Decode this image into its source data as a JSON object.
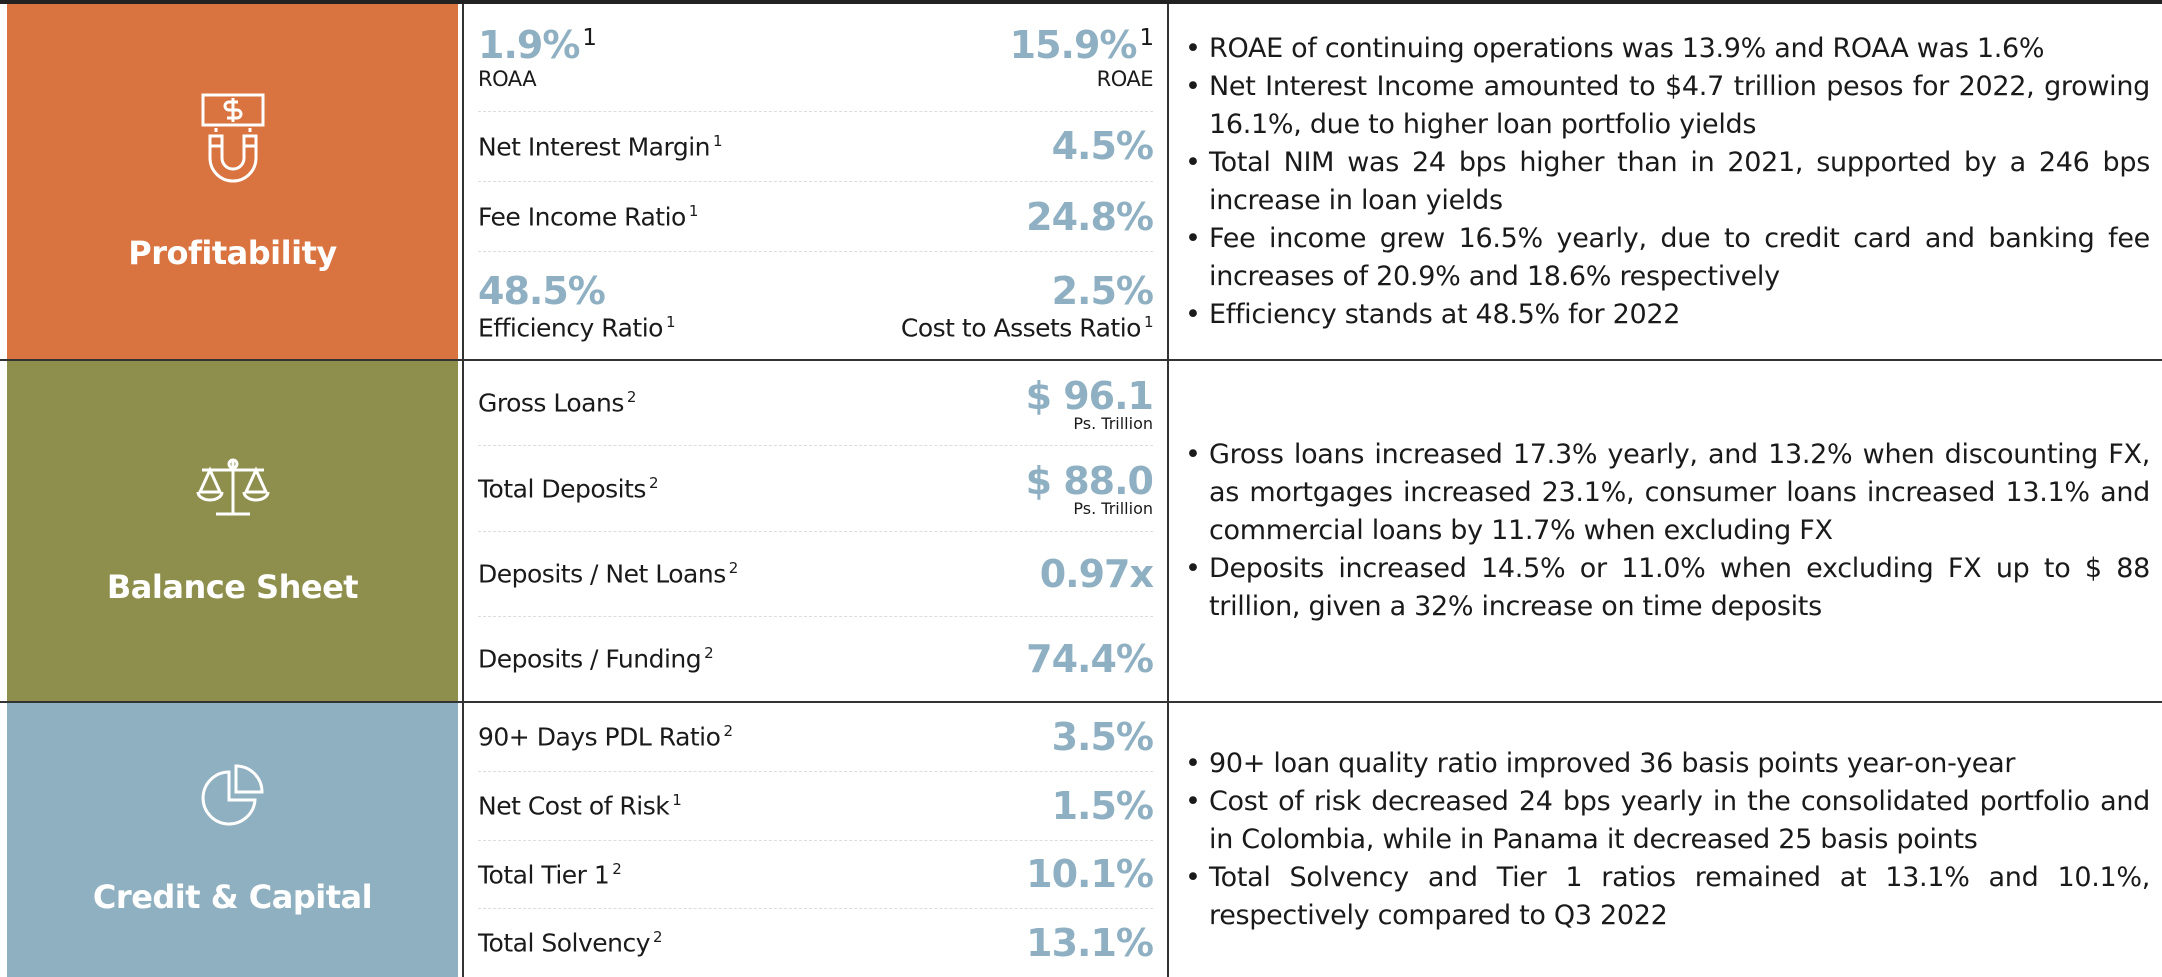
{
  "sections": [
    {
      "label": "Profitability",
      "rows": [
        {
          "left": {
            "value": "1.9%",
            "value_sup": "1",
            "label": "ROAA"
          },
          "right": {
            "value": "15.9%",
            "value_sup": "1",
            "label": "ROAE"
          }
        },
        {
          "label": "Net Interest Margin",
          "label_sup": "1",
          "value": "4.5%"
        },
        {
          "label": "Fee Income Ratio",
          "label_sup": "1",
          "value": "24.8%"
        },
        {
          "left": {
            "value": "48.5%",
            "label": "Efficiency Ratio",
            "label_sup": "1"
          },
          "right": {
            "value": "2.5%",
            "label": "Cost to Assets Ratio",
            "label_sup": "1"
          }
        }
      ],
      "bullets": [
        "ROAE of continuing operations was 13.9% and ROAA was 1.6%",
        "Net Interest Income amounted to $4.7 trillion pesos for 2022, growing 16.1%, due to higher loan portfolio yields",
        "Total NIM was 24 bps higher than in 2021, supported by a 246 bps increase in loan yields",
        "Fee income grew 16.5% yearly, due to credit card and banking fee increases of 20.9% and 18.6% respectively",
        "Efficiency stands at 48.5% for 2022"
      ]
    },
    {
      "label": "Balance Sheet",
      "rows": [
        {
          "label": "Gross Loans",
          "label_sup": "2",
          "value": "$ 96.1",
          "note": "Ps. Trillion"
        },
        {
          "label": "Total Deposits",
          "label_sup": "2",
          "value": "$ 88.0",
          "note": "Ps. Trillion"
        },
        {
          "label": "Deposits / Net Loans",
          "label_sup": "2",
          "value": "0.97x"
        },
        {
          "label": "Deposits / Funding",
          "label_sup": "2",
          "value": "74.4%"
        }
      ],
      "bullets": [
        "Gross loans increased 17.3% yearly, and 13.2% when discounting FX, as mortgages increased 23.1%, consumer loans increased 13.1% and commercial loans by 11.7% when excluding FX",
        "Deposits increased 14.5% or 11.0% when excluding FX up to $ 88 trillion, given a 32% increase on time deposits"
      ]
    },
    {
      "label": "Credit & Capital",
      "rows": [
        {
          "label": "90+ Days PDL Ratio",
          "label_sup": "2",
          "value": "3.5%"
        },
        {
          "label": "Net Cost of Risk",
          "label_sup": "1",
          "value": "1.5%"
        },
        {
          "label": "Total Tier 1",
          "label_sup": "2",
          "value": "10.1%"
        },
        {
          "label": "Total Solvency",
          "label_sup": "2",
          "value": "13.1%"
        }
      ],
      "bullets": [
        "90+ loan quality ratio improved 36 basis points year-on-year",
        "Cost of risk decreased 24 bps yearly in the consolidated portfolio and in Colombia, while in Panama it decreased 25 basis points",
        "Total Solvency and Tier 1 ratios remained at 13.1% and 10.1%, respectively compared to Q3 2022"
      ]
    }
  ]
}
